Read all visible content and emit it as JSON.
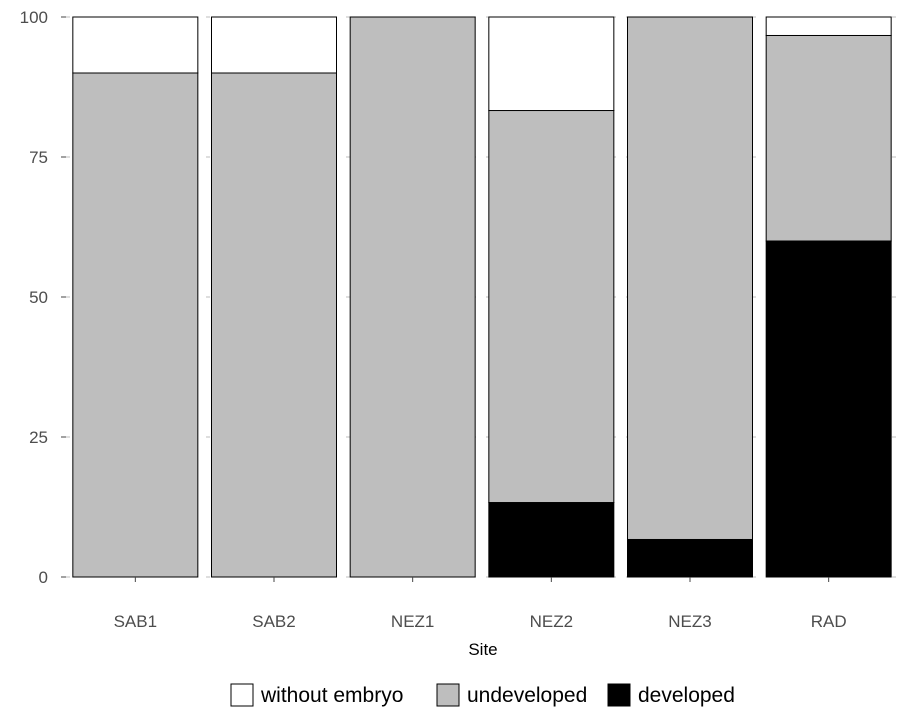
{
  "chart_data": {
    "type": "bar",
    "stacked": true,
    "xlabel": "Site",
    "ylabel": "",
    "ylim": [
      0,
      100
    ],
    "yticks": [
      0,
      25,
      50,
      75,
      100
    ],
    "categories": [
      "SAB1",
      "SAB2",
      "NEZ1",
      "NEZ2",
      "NEZ3",
      "RAD"
    ],
    "series": [
      {
        "name": "developed",
        "color": "#000000",
        "values": [
          0,
          0,
          0,
          13.3,
          6.7,
          60
        ]
      },
      {
        "name": "undeveloped",
        "color": "#bebebe",
        "values": [
          90,
          90,
          100,
          70,
          93.3,
          36.7
        ]
      },
      {
        "name": "without embryo",
        "color": "#ffffff",
        "values": [
          10,
          10,
          0,
          16.7,
          0,
          3.3
        ]
      }
    ],
    "legend": {
      "position": "bottom",
      "order": [
        "without embryo",
        "undeveloped",
        "developed"
      ]
    },
    "grid": true
  }
}
